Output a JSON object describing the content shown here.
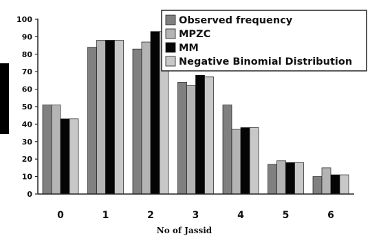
{
  "chart_data": {
    "type": "bar",
    "title": "",
    "xlabel": "No of Jassid",
    "ylabel": "",
    "categories": [
      "0",
      "1",
      "2",
      "3",
      "4",
      "5",
      "6"
    ],
    "ylim": [
      0,
      100
    ],
    "yticks": [
      "0",
      "10",
      "20",
      "30",
      "40",
      "50",
      "60",
      "70",
      "80",
      "90",
      "100"
    ],
    "legend_position": "top-right",
    "grid": false,
    "series": [
      {
        "name": "Observed frequency",
        "color": "#808080",
        "values": [
          51,
          84,
          83,
          64,
          51,
          17,
          10
        ]
      },
      {
        "name": "MPZC",
        "color": "#b4b4b4",
        "values": [
          51,
          88,
          87,
          62,
          37,
          19,
          15
        ]
      },
      {
        "name": "MM",
        "color": "#050505",
        "values": [
          43,
          88,
          93,
          68,
          38,
          18,
          11
        ]
      },
      {
        "name": "Negative Binomial Distribution",
        "color": "#c8c8c8",
        "values": [
          43,
          88,
          93,
          67,
          38,
          18,
          11
        ]
      }
    ]
  }
}
